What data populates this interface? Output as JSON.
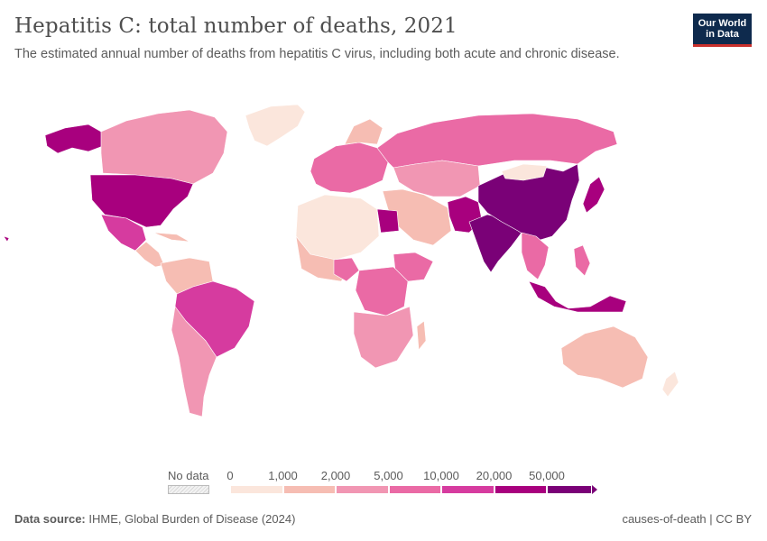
{
  "header": {
    "title": "Hepatitis C: total number of deaths, 2021",
    "subtitle": "The estimated annual number of deaths from hepatitis C virus, including both acute and chronic disease.",
    "logo_line1": "Our World",
    "logo_line2": "in Data"
  },
  "legend": {
    "no_data_label": "No data",
    "bins": [
      {
        "label": "0",
        "color": "#fbe6dc"
      },
      {
        "label": "1,000",
        "color": "#f6bdb3"
      },
      {
        "label": "2,000",
        "color": "#f196b3"
      },
      {
        "label": "5,000",
        "color": "#ea6aa5"
      },
      {
        "label": "10,000",
        "color": "#d63b9f"
      },
      {
        "label": "20,000",
        "color": "#a8007e"
      },
      {
        "label": "50,000",
        "color": "#7a0177"
      }
    ]
  },
  "regions": [
    {
      "name": "Canada",
      "color": "#f196b3"
    },
    {
      "name": "Alaska",
      "color": "#a8007e"
    },
    {
      "name": "United States",
      "color": "#a8007e"
    },
    {
      "name": "Mexico",
      "color": "#d63b9f"
    },
    {
      "name": "Brazil",
      "color": "#d63b9f"
    },
    {
      "name": "Greenland",
      "color": "#fbe6dc"
    },
    {
      "name": "Russia",
      "color": "#ea6aa5"
    },
    {
      "name": "China",
      "color": "#7a0177"
    },
    {
      "name": "India",
      "color": "#7a0177"
    },
    {
      "name": "Japan",
      "color": "#a8007e"
    },
    {
      "name": "Indonesia",
      "color": "#a8007e"
    },
    {
      "name": "Egypt",
      "color": "#a8007e"
    },
    {
      "name": "Pakistan",
      "color": "#a8007e"
    },
    {
      "name": "Nigeria",
      "color": "#ea6aa5"
    },
    {
      "name": "Australia",
      "color": "#f6bdb3"
    }
  ],
  "footer": {
    "source_label": "Data source:",
    "source_text": "IHME, Global Burden of Disease (2024)",
    "credit": "causes-of-death | CC BY"
  }
}
